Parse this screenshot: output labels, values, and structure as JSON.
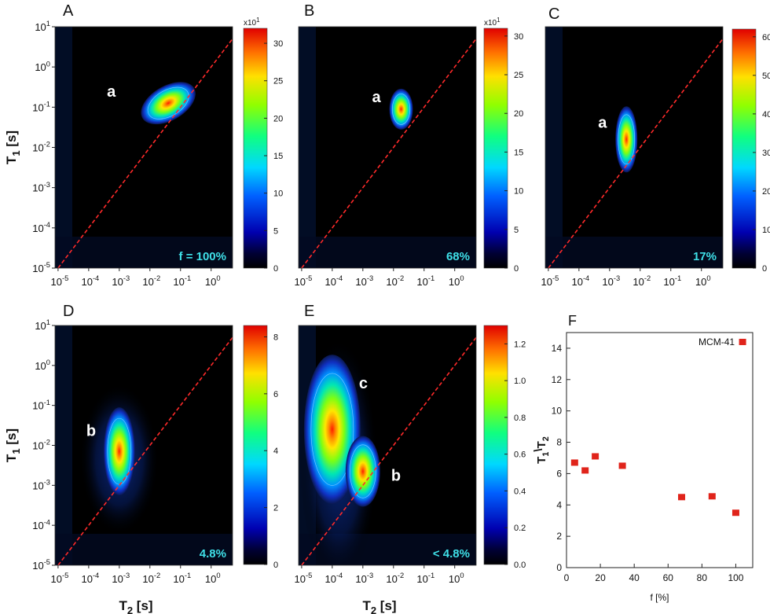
{
  "chart_data": [
    {
      "panel": "A",
      "type": "heatmap",
      "xlabel": "",
      "ylabel": "T1 [s]",
      "x_ticks": [
        "10-5",
        "10-4",
        "10-3",
        "10-2",
        "10-1",
        "100"
      ],
      "y_ticks": [
        "101",
        "100",
        "10-1",
        "10-2",
        "10-3",
        "10-4",
        "10-5"
      ],
      "colorbar": {
        "min": 0,
        "max": 32,
        "ticks": [
          0,
          5,
          10,
          15,
          20,
          25,
          30
        ],
        "multiplier": "x101"
      },
      "peaks": [
        {
          "label": "a",
          "log_t2": -1.4,
          "log_t1": -0.9
        }
      ],
      "annotation": "f = 100%"
    },
    {
      "panel": "B",
      "type": "heatmap",
      "xlabel": "",
      "ylabel": "",
      "x_ticks": [
        "10-5",
        "10-4",
        "10-3",
        "10-2",
        "10-1",
        "100"
      ],
      "y_ticks": [],
      "colorbar": {
        "min": 0,
        "max": 31,
        "ticks": [
          0,
          5,
          10,
          15,
          20,
          25,
          30
        ],
        "multiplier": "x101"
      },
      "peaks": [
        {
          "label": "a",
          "log_t2": -1.75,
          "log_t1": -1.05
        }
      ],
      "annotation": "68%"
    },
    {
      "panel": "C",
      "type": "heatmap",
      "xlabel": "",
      "ylabel": "",
      "x_ticks": [
        "10-5",
        "10-4",
        "10-3",
        "10-2",
        "10-1",
        "100"
      ],
      "y_ticks": [],
      "colorbar": {
        "min": 0,
        "max": 62,
        "ticks": [
          0,
          10,
          20,
          30,
          40,
          50,
          60
        ],
        "multiplier": ""
      },
      "peaks": [
        {
          "label": "a",
          "log_t2": -2.45,
          "log_t1": -1.8
        }
      ],
      "annotation": "17%"
    },
    {
      "panel": "D",
      "type": "heatmap",
      "xlabel": "T2 [s]",
      "ylabel": "T1 [s]",
      "x_ticks": [
        "10-5",
        "10-4",
        "10-3",
        "10-2",
        "10-1",
        "100"
      ],
      "y_ticks": [
        "101",
        "100",
        "10-1",
        "10-2",
        "10-3",
        "10-4",
        "10-5"
      ],
      "colorbar": {
        "min": 0,
        "max": 8.4,
        "ticks": [
          "0",
          "2",
          "4",
          "6",
          "8"
        ],
        "multiplier": ""
      },
      "peaks": [
        {
          "label": "b",
          "log_t2": -3.0,
          "log_t1": -2.15
        }
      ],
      "annotation": "4.8%"
    },
    {
      "panel": "E",
      "type": "heatmap",
      "xlabel": "T2 [s]",
      "ylabel": "",
      "x_ticks": [
        "10-5",
        "10-4",
        "10-3",
        "10-2",
        "10-1",
        "100"
      ],
      "y_ticks": [],
      "colorbar": {
        "min": 0,
        "max": 1.3,
        "ticks": [
          "0.0",
          "0.2",
          "0.4",
          "0.6",
          "0.8",
          "1.0",
          "1.2"
        ],
        "multiplier": ""
      },
      "peaks": [
        {
          "label": "c",
          "log_t2": -4.0,
          "log_t1": -1.6
        },
        {
          "label": "b",
          "log_t2": -3.0,
          "log_t1": -2.65
        }
      ],
      "annotation": "< 4.8%"
    },
    {
      "panel": "F",
      "type": "scatter",
      "xlabel": "f [%]",
      "ylabel": "T1\\T2",
      "xlim": [
        0,
        110
      ],
      "ylim": [
        0,
        15
      ],
      "x_ticks": [
        "0",
        "20",
        "40",
        "60",
        "80",
        "100"
      ],
      "y_ticks": [
        "0",
        "2",
        "4",
        "6",
        "8",
        "10",
        "12",
        "14"
      ],
      "points": [
        {
          "x": 4.8,
          "y": 6.7
        },
        {
          "x": 11,
          "y": 6.2
        },
        {
          "x": 17,
          "y": 7.1
        },
        {
          "x": 33,
          "y": 6.5
        },
        {
          "x": 68,
          "y": 4.5
        },
        {
          "x": 86,
          "y": 4.55
        },
        {
          "x": 100,
          "y": 3.5
        },
        {
          "x": 104,
          "y": 14.4,
          "label": "MCM-41"
        }
      ],
      "color": "#e0241b"
    }
  ]
}
